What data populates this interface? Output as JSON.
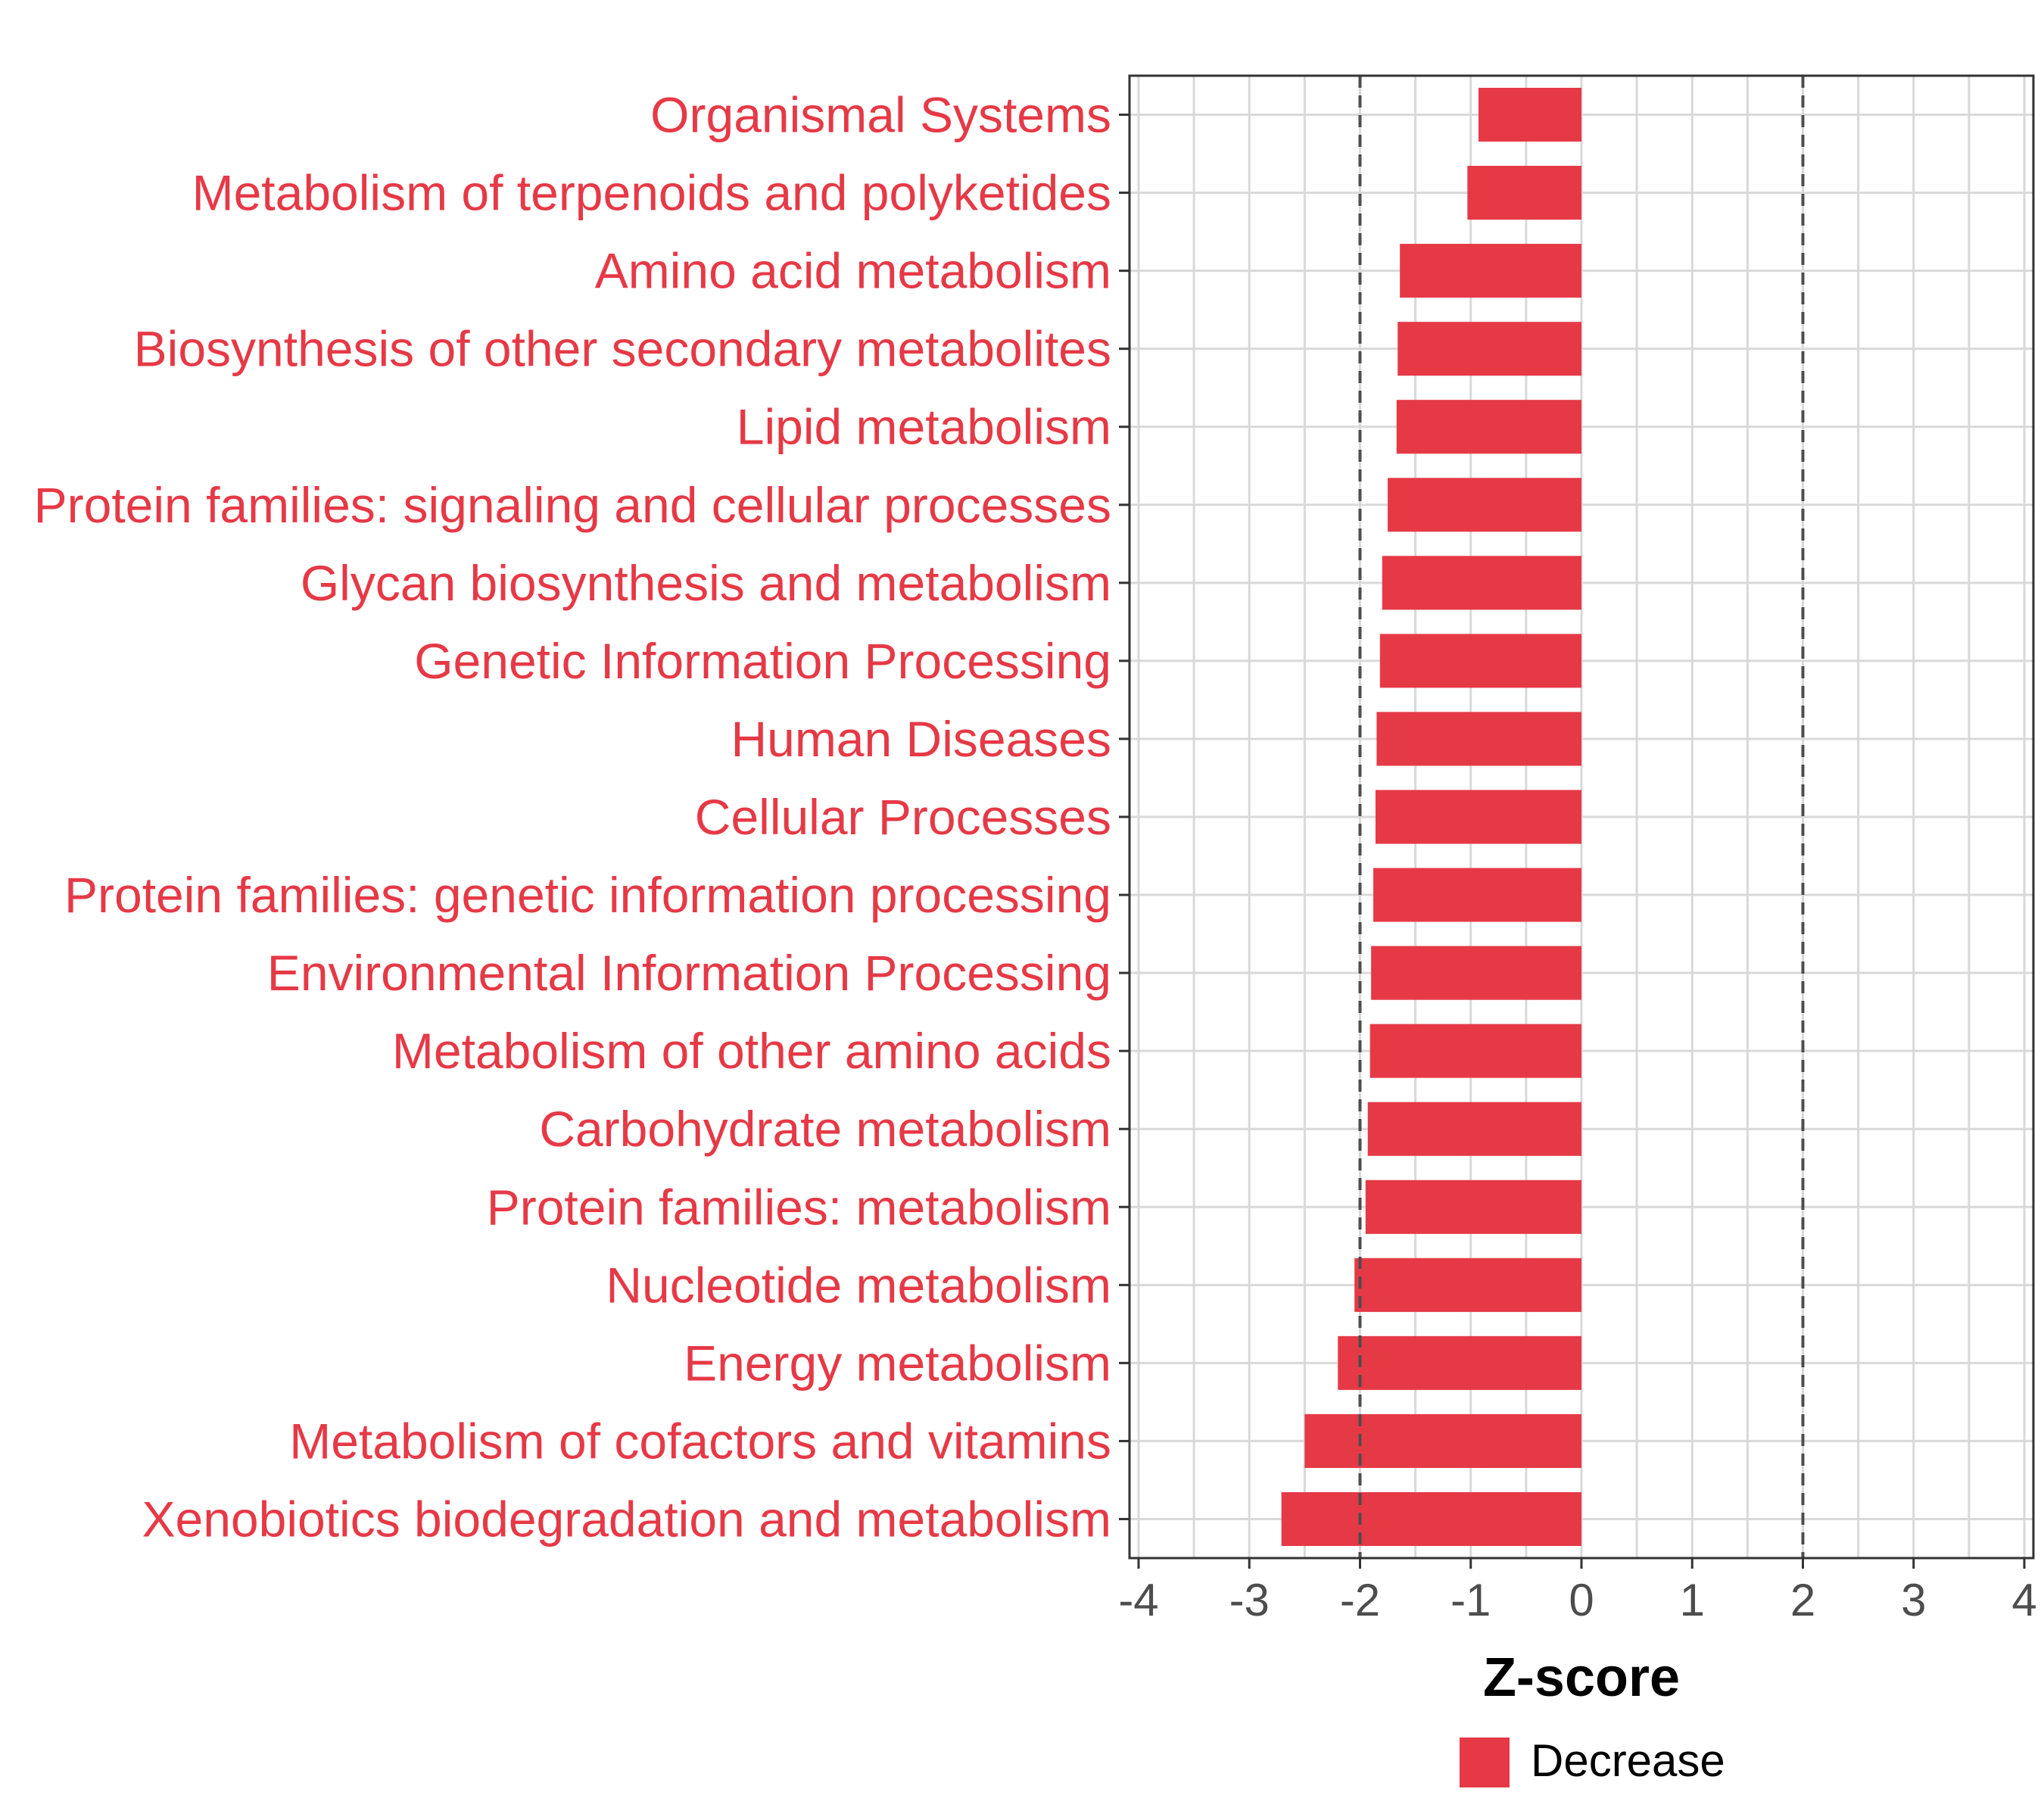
{
  "chart_data": {
    "type": "bar",
    "orientation": "horizontal",
    "categories": [
      "Organismal Systems",
      "Metabolism of terpenoids and polyketides",
      "Amino acid metabolism",
      "Biosynthesis of other secondary metabolites",
      "Lipid metabolism",
      "Protein families: signaling and cellular processes",
      "Glycan biosynthesis and metabolism",
      "Genetic Information Processing",
      "Human Diseases",
      "Cellular Processes",
      "Protein families: genetic information processing",
      "Environmental Information Processing",
      "Metabolism of other amino acids",
      "Carbohydrate metabolism",
      "Protein families: metabolism",
      "Nucleotide metabolism",
      "Energy metabolism",
      "Metabolism of cofactors and vitamins",
      "Xenobiotics biodegradation and metabolism"
    ],
    "values": [
      -0.93,
      -1.03,
      -1.64,
      -1.66,
      -1.67,
      -1.75,
      -1.8,
      -1.82,
      -1.85,
      -1.86,
      -1.88,
      -1.9,
      -1.91,
      -1.93,
      -1.95,
      -2.05,
      -2.2,
      -2.5,
      -2.71
    ],
    "series": [
      {
        "name": "Decrease",
        "values": [
          -0.93,
          -1.03,
          -1.64,
          -1.66,
          -1.67,
          -1.75,
          -1.8,
          -1.82,
          -1.85,
          -1.86,
          -1.88,
          -1.9,
          -1.91,
          -1.93,
          -1.95,
          -2.05,
          -2.2,
          -2.5,
          -2.71
        ]
      }
    ],
    "xlabel": "Z-score",
    "ylabel": "",
    "xlim": [
      -4,
      4
    ],
    "xticks": [
      -4,
      -3,
      -2,
      -1,
      0,
      1,
      2,
      3,
      4
    ],
    "xtick_labels": [
      "-4",
      "-3",
      "-2",
      "-1",
      "0",
      "1",
      "2",
      "3",
      "4"
    ],
    "reference_lines": [
      -2,
      2
    ],
    "grid": true,
    "legend": {
      "position": "bottom",
      "entries": [
        "Decrease"
      ]
    },
    "colors": {
      "bar": "#E63946",
      "label": "#E63946",
      "grid": "#d9d9d9",
      "panel_border": "#333333",
      "reference_line": "#4d4d4d"
    }
  }
}
